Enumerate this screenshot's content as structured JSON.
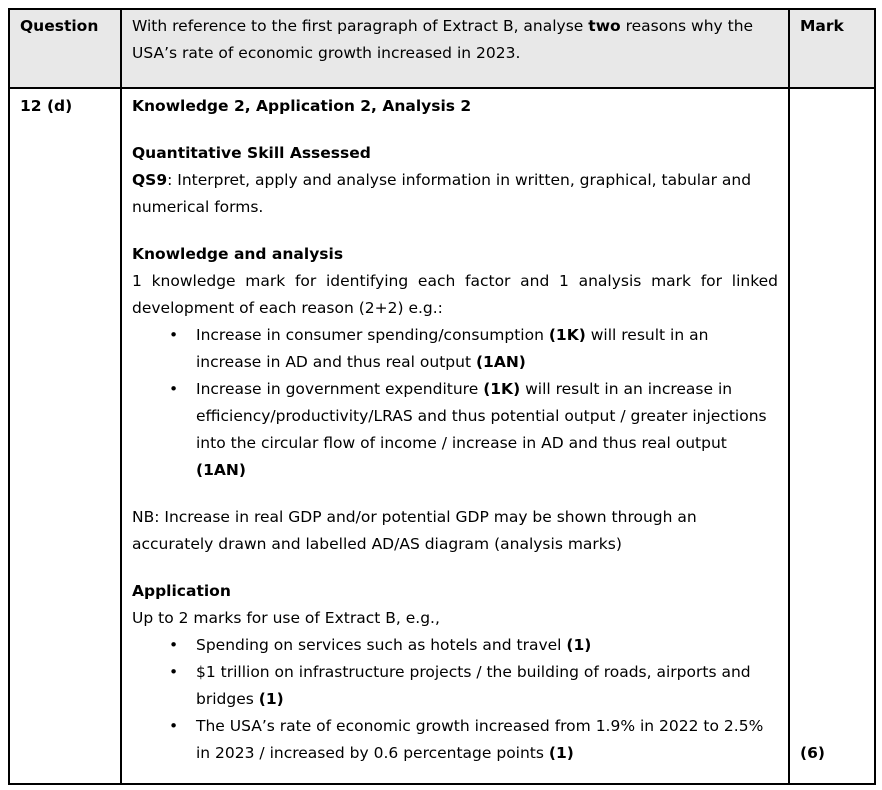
{
  "colors": {
    "header_bg": "#e8e8e8",
    "border": "#000000",
    "text": "#000000",
    "page_bg": "#ffffff"
  },
  "header": {
    "question_label": "Question",
    "mark_label": "Mark",
    "prompt": [
      {
        "text": "With reference to the first paragraph of Extract B, analyse ",
        "bold": false
      },
      {
        "text": "two",
        "bold": true
      },
      {
        "text": " reasons why the USA’s rate of economic growth increased in 2023.",
        "bold": false
      }
    ]
  },
  "body": {
    "question_number": "12 (d)",
    "mark_value": "(6)",
    "marks_summary": "Knowledge 2, Application 2, Analysis 2",
    "quant_heading": "Quantitative Skill Assessed",
    "qs9": [
      {
        "text": "QS9",
        "bold": true
      },
      {
        "text": ": Interpret, apply and analyse information in written, graphical, tabular and numerical forms.",
        "bold": false
      }
    ],
    "knowledge_heading": "Knowledge and analysis",
    "knowledge_intro": "1 knowledge mark for identifying each factor and 1 analysis mark for linked development of each reason (2+2) e.g.:",
    "knowledge_bullets": [
      [
        {
          "text": "Increase in consumer spending/consumption ",
          "bold": false
        },
        {
          "text": "(1K)",
          "bold": true
        },
        {
          "text": " will result in an increase in AD and thus real output ",
          "bold": false
        },
        {
          "text": "(1AN)",
          "bold": true
        }
      ],
      [
        {
          "text": "Increase in government expenditure ",
          "bold": false
        },
        {
          "text": "(1K)",
          "bold": true
        },
        {
          "text": " will result in an increase in efficiency/productivity/LRAS and thus potential output / greater injections into the circular flow of income / increase in AD and thus real output ",
          "bold": false
        },
        {
          "text": "(1AN)",
          "bold": true
        }
      ]
    ],
    "nb_note": "NB: Increase in real GDP and/or potential GDP may be shown through an accurately drawn and labelled AD/AS diagram (analysis marks)",
    "application_heading": "Application",
    "application_intro": "Up to 2 marks for use of Extract B, e.g.,",
    "application_bullets": [
      [
        {
          "text": "Spending on services such as hotels and travel ",
          "bold": false
        },
        {
          "text": "(1)",
          "bold": true
        }
      ],
      [
        {
          "text": "$1 trillion on infrastructure projects / the building of roads, airports and bridges ",
          "bold": false
        },
        {
          "text": "(1)",
          "bold": true
        }
      ],
      [
        {
          "text": "The USA’s rate of economic growth increased from 1.9% in 2022 to 2.5% in 2023 / increased by 0.6 percentage points ",
          "bold": false
        },
        {
          "text": "(1)",
          "bold": true
        }
      ]
    ]
  }
}
